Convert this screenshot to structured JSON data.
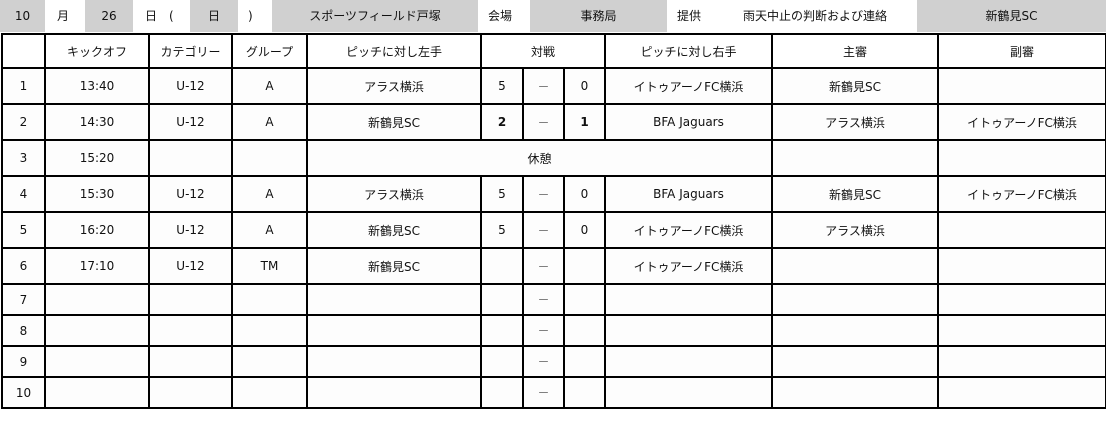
{
  "header": {
    "month": "10",
    "month_label": "月",
    "day": "26",
    "day_label": "日　(",
    "weekday": "日",
    "close_paren": ")",
    "venue": "スポーツフィールド戸塚",
    "venue_label": "会場",
    "office": "事務局",
    "provider_label": "提供",
    "rain_label": "雨天中止の判断および連絡",
    "contact": "新鶴見SC"
  },
  "columns": [
    "",
    "キックオフ",
    "カテゴリー",
    "グループ",
    "ピッチに対し左手",
    "対戦",
    "ピッチに対し右手",
    "主審",
    "副審"
  ],
  "rows": [
    {
      "no": "1",
      "time": "13:40",
      "cat": "U-12",
      "group": "A",
      "left": "アラス横浜",
      "sl": "5",
      "dash": "－",
      "sr": "0",
      "right": "イトゥアーノFC横浜",
      "ref": "新鶴見SC",
      "aref": "",
      "bold": false
    },
    {
      "no": "2",
      "time": "14:30",
      "cat": "U-12",
      "group": "A",
      "left": "新鶴見SC",
      "sl": "2",
      "dash": "－",
      "sr": "1",
      "right": "BFA Jaguars",
      "ref": "アラス横浜",
      "aref": "イトゥアーノFC横浜",
      "bold": true
    },
    {
      "no": "3",
      "time": "15:20",
      "break": "休憩"
    },
    {
      "no": "4",
      "time": "15:30",
      "cat": "U-12",
      "group": "A",
      "left": "アラス横浜",
      "sl": "5",
      "dash": "－",
      "sr": "0",
      "right": "BFA Jaguars",
      "ref": "新鶴見SC",
      "aref": "イトゥアーノFC横浜",
      "bold": false
    },
    {
      "no": "5",
      "time": "16:20",
      "cat": "U-12",
      "group": "A",
      "left": "新鶴見SC",
      "sl": "5",
      "dash": "－",
      "sr": "0",
      "right": "イトゥアーノFC横浜",
      "ref": "アラス横浜",
      "aref": "",
      "bold": false
    },
    {
      "no": "6",
      "time": "17:10",
      "cat": "U-12",
      "group": "TM",
      "left": "新鶴見SC",
      "sl": "",
      "dash": "－",
      "sr": "",
      "right": "イトゥアーノFC横浜",
      "ref": "",
      "aref": "",
      "bold": false
    },
    {
      "no": "7",
      "time": "",
      "cat": "",
      "group": "",
      "left": "",
      "sl": "",
      "dash": "－",
      "sr": "",
      "right": "",
      "ref": "",
      "aref": "",
      "bold": false
    },
    {
      "no": "8",
      "time": "",
      "cat": "",
      "group": "",
      "left": "",
      "sl": "",
      "dash": "－",
      "sr": "",
      "right": "",
      "ref": "",
      "aref": "",
      "bold": false
    },
    {
      "no": "9",
      "time": "",
      "cat": "",
      "group": "",
      "left": "",
      "sl": "",
      "dash": "－",
      "sr": "",
      "right": "",
      "ref": "",
      "aref": "",
      "bold": false
    },
    {
      "no": "10",
      "time": "",
      "cat": "",
      "group": "",
      "left": "",
      "sl": "",
      "dash": "－",
      "sr": "",
      "right": "",
      "ref": "",
      "aref": "",
      "bold": false
    }
  ]
}
